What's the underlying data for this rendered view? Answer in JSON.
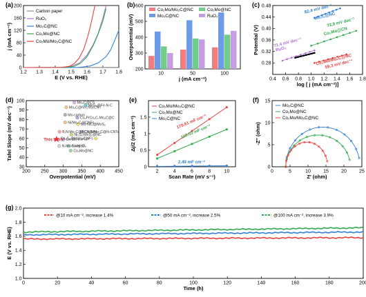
{
  "chart_data": [
    {
      "panel": "(a)",
      "type": "line",
      "xlabel": "E (V vs. RHE)",
      "ylabel": "j (mA cm⁻²)",
      "xlim": [
        1.2,
        1.8
      ],
      "ylim": [
        0,
        200
      ],
      "xticks": [
        1.2,
        1.3,
        1.4,
        1.5,
        1.6,
        1.7,
        1.8
      ],
      "yticks": [
        0,
        40,
        80,
        120,
        160,
        200
      ],
      "legend": "top-left",
      "series": [
        {
          "name": "Carbon paper",
          "color": "#8a8a8a",
          "points": [
            [
              1.2,
              0
            ],
            [
              1.5,
              0
            ],
            [
              1.8,
              0.5
            ]
          ]
        },
        {
          "name": "RuO₂",
          "color": "#b070d8",
          "points": [
            [
              1.2,
              0
            ],
            [
              1.44,
              0.5
            ],
            [
              1.5,
              4
            ],
            [
              1.55,
              14
            ],
            [
              1.6,
              40
            ],
            [
              1.64,
              75
            ],
            [
              1.67,
              110
            ],
            [
              1.7,
              160
            ],
            [
              1.72,
              200
            ]
          ]
        },
        {
          "name": "Mo₂C@NC",
          "color": "#2f7fd8",
          "points": [
            [
              1.2,
              0
            ],
            [
              1.55,
              0.5
            ],
            [
              1.62,
              5
            ],
            [
              1.67,
              15
            ],
            [
              1.72,
              35
            ],
            [
              1.75,
              58
            ],
            [
              1.78,
              95
            ],
            [
              1.8,
              120
            ]
          ]
        },
        {
          "name": "Co₂Mo@NC",
          "color": "#2ea84a",
          "points": [
            [
              1.2,
              0
            ],
            [
              1.46,
              0.5
            ],
            [
              1.52,
              4
            ],
            [
              1.56,
              14
            ],
            [
              1.6,
              35
            ],
            [
              1.64,
              72
            ],
            [
              1.67,
              108
            ],
            [
              1.7,
              150
            ],
            [
              1.72,
              190
            ]
          ]
        },
        {
          "name": "Co₂Mo/Mo₂C@NC",
          "color": "#e84040",
          "points": [
            [
              1.2,
              0
            ],
            [
              1.44,
              0.5
            ],
            [
              1.49,
              4
            ],
            [
              1.52,
              13
            ],
            [
              1.55,
              30
            ],
            [
              1.58,
              60
            ],
            [
              1.6,
              92
            ],
            [
              1.62,
              130
            ],
            [
              1.635,
              165
            ],
            [
              1.65,
              200
            ]
          ]
        }
      ]
    },
    {
      "panel": "(b)",
      "type": "bar",
      "xlabel": "j (mA cm⁻²)",
      "ylabel": "Overpotential (mV)",
      "ylim": [
        200,
        600
      ],
      "yticks": [
        200,
        300,
        400,
        500,
        600
      ],
      "categories": [
        "10",
        "50",
        "100"
      ],
      "legend": "top",
      "series": [
        {
          "name": "Co₂Mo/Mo₂C@NC",
          "color": "#f07e7e",
          "values": [
            282,
            322,
            336
          ]
        },
        {
          "name": "Mo₂C@NC",
          "color": "#6f9be6",
          "values": [
            436,
            507,
            556
          ]
        },
        {
          "name": "Co₂Mo@NC",
          "color": "#72cc8a",
          "values": [
            342,
            392,
            416
          ]
        },
        {
          "name": "RuO₂",
          "color": "#c59ee2",
          "values": [
            300,
            386,
            440
          ]
        }
      ]
    },
    {
      "panel": "(c)",
      "type": "scatter",
      "xlabel": "log [ j (mA cm⁻²)]",
      "ylabel": "Potential (V)",
      "xlim": [
        0.4,
        1.8
      ],
      "ylim": [
        0.24,
        0.48
      ],
      "xticks": [
        0.4,
        0.6,
        0.8,
        1.0,
        1.2,
        1.4,
        1.6,
        1.8
      ],
      "yticks": [
        0.28,
        0.32,
        0.36,
        0.4,
        0.44,
        0.48
      ],
      "annotations": [
        {
          "text": "82.4 mV dec⁻¹",
          "color": "#2f7fd8"
        },
        {
          "text": "Mo₂C@NC",
          "color": "#2f7fd8"
        },
        {
          "text": "73.9 mV dec⁻¹",
          "color": "#2ea84a"
        },
        {
          "text": "Co₂Mo@CN",
          "color": "#2ea84a"
        },
        {
          "text": "71.4 mV dec⁻¹",
          "color": "#b070d8"
        },
        {
          "text": "RuO₂",
          "color": "#b070d8"
        },
        {
          "text": "Co₂Mo/Mo₂C@NC",
          "color": "#e84040"
        },
        {
          "text": "59.3 mV dec⁻¹",
          "color": "#e84040"
        }
      ],
      "series": [
        {
          "name": "Mo₂C@NC",
          "color": "#2f7fd8",
          "x_range": [
            1.05,
            1.45
          ],
          "y_range": [
            0.437,
            0.47
          ]
        },
        {
          "name": "Co₂Mo@NC",
          "color": "#2ea84a",
          "x_range": [
            1.0,
            1.7
          ],
          "y_range": [
            0.34,
            0.392
          ]
        },
        {
          "name": "RuO₂",
          "color": "#b070d8",
          "x_range": [
            0.55,
            1.05
          ],
          "y_range": [
            0.288,
            0.324
          ]
        },
        {
          "name": "Co₂Mo/Mo₂C@NC",
          "color": "#e84040",
          "x_range": [
            1.05,
            1.55
          ],
          "y_range": [
            0.28,
            0.31
          ]
        },
        {
          "name": "black fit",
          "color": "#000000",
          "x_range": [
            0.75,
            1.05
          ],
          "y_range": [
            0.298,
            0.315
          ]
        }
      ]
    },
    {
      "panel": "(d)",
      "type": "scatter",
      "xlabel": "Overpotential (mV)",
      "ylabel": "Tafel Slope (mV dec⁻¹)",
      "xlim": [
        200,
        450
      ],
      "ylim": [
        30,
        100
      ],
      "xticks": [
        200,
        250,
        300,
        350,
        400,
        450
      ],
      "yticks": [
        30,
        40,
        50,
        60,
        70,
        80,
        90,
        100
      ],
      "points": [
        {
          "label": "Mo₂C@CS",
          "x": 330,
          "y": 98,
          "color": "#d9b3ec"
        },
        {
          "label": "MoS₂@Fe-N-C",
          "x": 360,
          "y": 95,
          "color": "#7ccfe8"
        },
        {
          "label": "Mo₂C@N-CNS/CNT",
          "x": 308,
          "y": 93,
          "color": "#f4c58a"
        },
        {
          "label": "Mo-carbon",
          "x": 305,
          "y": 85,
          "color": "#b0b0b0"
        },
        {
          "label": "Co₂P/Co₂C-Mo₂C@C",
          "x": 338,
          "y": 82,
          "color": "#b6a2d8"
        },
        {
          "label": "Ni/Mo₂C-NCNFs",
          "x": 305,
          "y": 77,
          "color": "#f4c58a"
        },
        {
          "label": "Mo-N/C@MoS₂",
          "x": 340,
          "y": 75,
          "color": "#f4e27a"
        },
        {
          "label": "B,N:Mo₂C@BCN NPs",
          "x": 290,
          "y": 67,
          "color": "#f7a8a8"
        },
        {
          "label": "Co@-Mo₂C@N-CNTs",
          "x": 350,
          "y": 67,
          "color": "#c8a0e0"
        },
        {
          "label": "Ni₃S₂/MoS₂@NC",
          "x": 322,
          "y": 64,
          "color": "#c9d57a"
        },
        {
          "label": "This work",
          "x": 282,
          "y": 59.3,
          "color": "#e83030"
        },
        {
          "label": "Co-Mo-K-PHP",
          "x": 300,
          "y": 59,
          "color": "#b8b8ff"
        },
        {
          "label": "Co₃S₄@MoS₂/CNFs",
          "x": 388,
          "y": 60,
          "color": "#e9e078"
        },
        {
          "label": "N-Mo-holey G",
          "x": 289,
          "y": 52,
          "color": "#d0d0d0"
        },
        {
          "label": "Co-MoOₓ",
          "x": 315,
          "y": 52,
          "color": "#9fe0d8"
        },
        {
          "label": "Co₂Mo@NC",
          "x": 320,
          "y": 47,
          "color": "#9ad7a4"
        }
      ],
      "annotations": [
        {
          "text": "This work",
          "color": "#e83030"
        }
      ]
    },
    {
      "panel": "(e)",
      "type": "scatter",
      "xlabel": "Scan Rate (mV s⁻¹)",
      "ylabel": "Δj/2 (mA cm⁻²)",
      "xlim": [
        1,
        11
      ],
      "ylim": [
        0,
        2
      ],
      "xticks": [
        2,
        4,
        6,
        8,
        10
      ],
      "yticks": [
        0,
        0.5,
        1,
        1.5
      ],
      "legend": "top-left",
      "series": [
        {
          "name": "Co₂Mo/Mo₂C@NC",
          "color": "#e84040",
          "slope_label": "179.61 mF cm⁻²",
          "x": [
            2,
            4,
            6,
            8,
            10
          ],
          "y": [
            0.36,
            0.72,
            1.08,
            1.44,
            1.8
          ]
        },
        {
          "name": "Co₂Mo@NC",
          "color": "#2ea84a",
          "slope_label": "110.03 mF cm⁻²",
          "x": [
            2,
            4,
            6,
            8,
            10
          ],
          "y": [
            0.25,
            0.47,
            0.69,
            0.91,
            1.13
          ]
        },
        {
          "name": "Mo₂C@NC",
          "color": "#2f7fd8",
          "slope_label": "2.49 mF cm⁻²",
          "x": [
            2,
            4,
            6,
            8,
            10
          ],
          "y": [
            0.01,
            0.015,
            0.02,
            0.025,
            0.03
          ]
        }
      ]
    },
    {
      "panel": "(f)",
      "type": "scatter",
      "xlabel": "Z′ (ohm)",
      "ylabel": "-Z″ (ohm)",
      "xlim": [
        0,
        25
      ],
      "ylim": [
        0,
        15
      ],
      "xticks": [
        0,
        5,
        10,
        15,
        20,
        25
      ],
      "yticks": [
        0,
        5,
        10,
        15
      ],
      "legend": "top",
      "series": [
        {
          "name": "Mo₂C@NC",
          "color": "#2f7fd8",
          "start": 3.8,
          "end": 24.5,
          "peak": 9.0
        },
        {
          "name": "Co₂Mo@NC",
          "color": "#2ea84a",
          "start": 3.8,
          "end": 21.8,
          "peak": 7.2
        },
        {
          "name": "Co₂Mo/Mo₂C@NC",
          "color": "#e84040",
          "start": 3.8,
          "end": 15.5,
          "peak": 5.6
        }
      ]
    },
    {
      "panel": "(g)",
      "type": "line",
      "xlabel": "Time (h)",
      "ylabel": "E (V vs. RHE)",
      "xlim": [
        0,
        200
      ],
      "ylim": [
        1.0,
        2.0
      ],
      "xticks": [
        0,
        20,
        40,
        60,
        80,
        100,
        120,
        140,
        160,
        180,
        200
      ],
      "yticks": [
        1.0,
        1.2,
        1.4,
        1.6,
        1.8,
        2.0
      ],
      "legend": "top",
      "series": [
        {
          "name": "@10 mA cm⁻², increase 1.4%",
          "color": "#e84040",
          "level": 1.56,
          "end_level": 1.58
        },
        {
          "name": "@50 mA cm⁻², increase 2.5%",
          "color": "#2f7fd8",
          "level": 1.62,
          "end_level": 1.66
        },
        {
          "name": "@100 mA cm⁻², increase 3.9%",
          "color": "#2ea84a",
          "level": 1.66,
          "end_level": 1.72
        }
      ]
    }
  ]
}
